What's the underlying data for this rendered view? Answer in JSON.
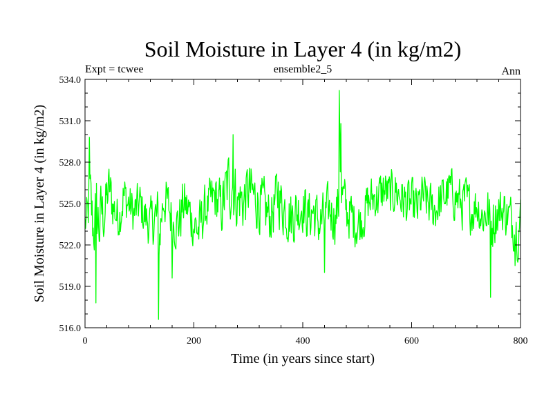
{
  "chart_data": {
    "type": "line",
    "title": "Soil Moisture in Layer 4 (in kg/m2)",
    "header_left": "Expt = tcwee",
    "header_center": "ensemble2_5",
    "header_right": "Ann",
    "xlabel": "Time (in years since start)",
    "ylabel": "Soil Moisture in Layer 4 (in kg/m2)",
    "xlim": [
      0,
      800
    ],
    "ylim": [
      516.0,
      534.0
    ],
    "x_ticks": [
      0,
      200,
      400,
      600,
      800
    ],
    "x_tick_labels": [
      "0",
      "200",
      "400",
      "600",
      "800"
    ],
    "y_ticks": [
      516.0,
      519.0,
      522.0,
      525.0,
      528.0,
      531.0,
      534.0
    ],
    "y_tick_labels": [
      "516.0",
      "519.0",
      "522.0",
      "525.0",
      "528.0",
      "531.0",
      "534.0"
    ],
    "x_minor_step": 40,
    "y_minor_step": 1,
    "line_color": "#00ff00",
    "series": [
      {
        "name": "ensemble2_5",
        "anchors": {
          "x": [
            0,
            5,
            8,
            10,
            15,
            18,
            22,
            27,
            30,
            35,
            40,
            45,
            50,
            60,
            65,
            70,
            80,
            90,
            100,
            110,
            120,
            130,
            134,
            136,
            140,
            145,
            150,
            160,
            170,
            175,
            180,
            190,
            200,
            210,
            215,
            220,
            230,
            240,
            250,
            260,
            265,
            270,
            275,
            280,
            285,
            290,
            300,
            310,
            320,
            330,
            340,
            350,
            355,
            360,
            370,
            380,
            390,
            400,
            410,
            418,
            425,
            430,
            440,
            450,
            460,
            466,
            468,
            470,
            480,
            490,
            500,
            510,
            520,
            530,
            540,
            550,
            560,
            570,
            580,
            590,
            600,
            610,
            620,
            630,
            640,
            650,
            660,
            670,
            680,
            690,
            700,
            710,
            720,
            730,
            740,
            745,
            750,
            760,
            770,
            780,
            790,
            795,
            800
          ],
          "y_center": [
            523.5,
            524.0,
            525.5,
            525.0,
            523.2,
            523.5,
            524.0,
            523.3,
            524.5,
            524.0,
            525.5,
            526.0,
            525.0,
            524.0,
            524.5,
            525.5,
            525.0,
            524.2,
            525.0,
            524.0,
            523.5,
            524.0,
            523.0,
            522.5,
            524.0,
            525.5,
            525.0,
            524.0,
            523.5,
            524.0,
            525.0,
            524.5,
            523.5,
            523.0,
            524.0,
            524.5,
            525.0,
            525.5,
            524.5,
            526.0,
            526.5,
            526.5,
            526.0,
            525.0,
            525.5,
            525.0,
            526.0,
            525.5,
            525.0,
            524.5,
            524.0,
            525.0,
            526.0,
            525.0,
            524.5,
            524.0,
            524.5,
            525.0,
            524.0,
            524.5,
            524.0,
            523.5,
            524.0,
            524.5,
            524.0,
            525.0,
            531.0,
            526.0,
            524.5,
            524.0,
            523.5,
            524.0,
            525.0,
            525.5,
            525.5,
            526.0,
            525.5,
            526.0,
            525.5,
            525.0,
            525.0,
            524.5,
            525.5,
            525.0,
            524.5,
            525.0,
            525.5,
            526.0,
            525.5,
            525.0,
            525.0,
            524.5,
            525.0,
            524.0,
            524.5,
            523.0,
            524.0,
            524.5,
            524.5,
            524.0,
            523.5,
            523.0,
            524.0
          ],
          "amplitude": [
            1.6,
            2.0,
            3.0,
            2.8,
            2.5,
            2.8,
            3.2,
            2.8,
            2.5,
            2.0,
            2.0,
            2.2,
            2.0,
            1.8,
            1.8,
            2.0,
            1.8,
            1.8,
            1.8,
            1.8,
            1.8,
            2.2,
            3.5,
            3.0,
            2.0,
            2.0,
            2.0,
            2.0,
            2.0,
            2.2,
            2.0,
            2.0,
            2.0,
            2.2,
            2.0,
            1.8,
            1.8,
            2.0,
            2.2,
            2.5,
            2.8,
            2.8,
            2.5,
            2.2,
            2.2,
            2.2,
            2.2,
            2.2,
            2.2,
            2.2,
            2.0,
            2.2,
            2.5,
            2.2,
            2.2,
            2.2,
            2.2,
            2.0,
            2.0,
            2.2,
            2.0,
            2.0,
            2.0,
            2.0,
            2.0,
            2.0,
            2.0,
            2.0,
            2.0,
            2.0,
            1.8,
            1.8,
            1.8,
            1.8,
            1.8,
            1.8,
            1.8,
            1.8,
            1.8,
            1.8,
            1.8,
            1.8,
            1.8,
            1.8,
            1.8,
            1.8,
            1.8,
            1.8,
            1.8,
            2.0,
            2.0,
            1.8,
            1.8,
            1.8,
            2.0,
            2.4,
            2.2,
            1.8,
            1.8,
            1.8,
            2.0,
            2.0,
            1.8
          ]
        },
        "extremes": [
          {
            "x": 8,
            "y": 529.8
          },
          {
            "x": 20,
            "y": 517.8
          },
          {
            "x": 135,
            "y": 516.6
          },
          {
            "x": 160,
            "y": 519.6
          },
          {
            "x": 272,
            "y": 530.0
          },
          {
            "x": 440,
            "y": 520.0
          },
          {
            "x": 467,
            "y": 533.2
          },
          {
            "x": 470,
            "y": 530.8
          },
          {
            "x": 745,
            "y": 518.2
          },
          {
            "x": 790,
            "y": 520.5
          }
        ]
      }
    ]
  }
}
